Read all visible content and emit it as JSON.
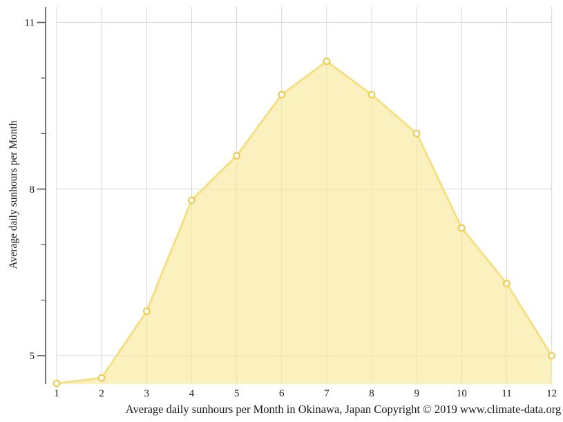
{
  "chart_data": {
    "type": "area",
    "caption": "Average daily sunhours per Month in Okinawa, Japan Copyright © 2019 www.climate-data.org",
    "ylabel": "Average daily sunhours per Month",
    "xlabel": "",
    "categories": [
      "1",
      "2",
      "3",
      "4",
      "5",
      "6",
      "7",
      "8",
      "9",
      "10",
      "11",
      "12"
    ],
    "series": [
      {
        "name": "Average daily sunhours",
        "values": [
          4.5,
          4.6,
          5.8,
          7.8,
          8.6,
          9.7,
          10.3,
          9.7,
          9.0,
          7.3,
          6.3,
          5.0
        ]
      }
    ],
    "ylim": [
      4.49,
      11.28
    ],
    "yticks_labeled": [
      5,
      8,
      11
    ],
    "yticks_minor": [
      6,
      7,
      9,
      10
    ],
    "grid": true,
    "legend_position": "none",
    "marker_shape": "open-circle",
    "colors": {
      "area_fill": "#F8EA9B",
      "area_fill_opacity": "0.65",
      "line": "#F5DF82",
      "marker_stroke": "#ECCB55",
      "marker_fill": "#FFFFFF",
      "gridline": "#D9D9D9",
      "axis": "#4A4A4A",
      "tick": "#5A5A5A",
      "text": "#1A1A1A"
    }
  }
}
